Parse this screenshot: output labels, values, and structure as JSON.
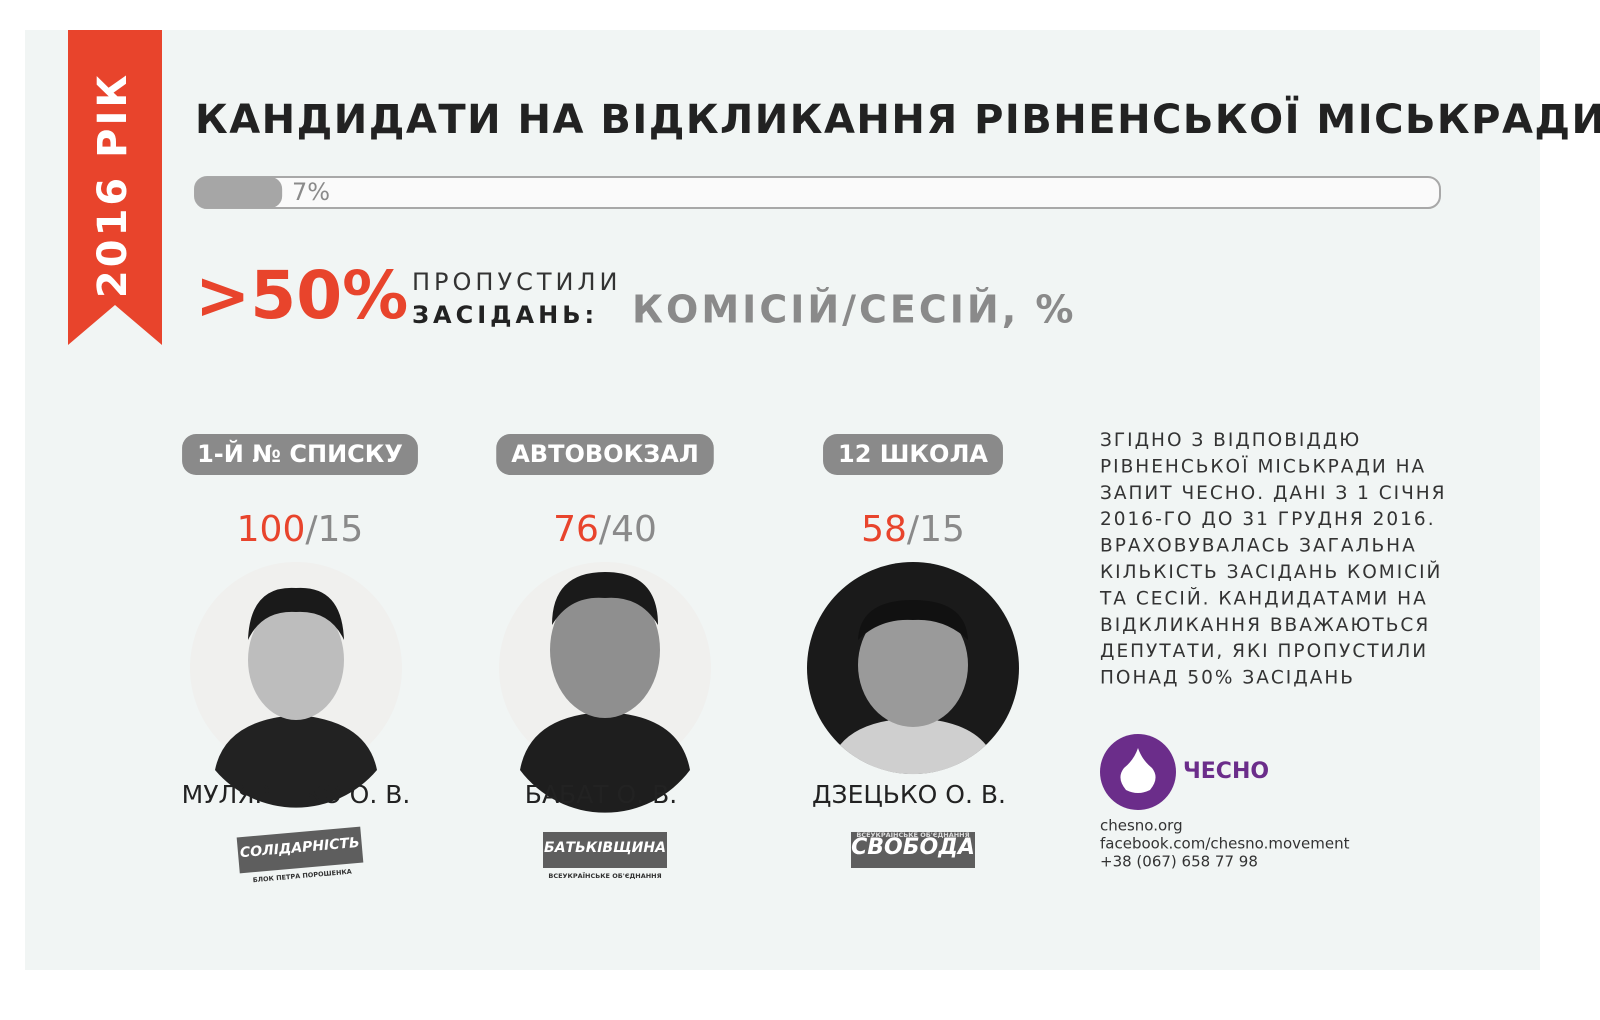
{
  "ribbon": "2016 РІК",
  "title": "КАНДИДАТИ НА ВІДКЛИКАННЯ РІВНЕНСЬКОЇ МІСЬКРАДИ",
  "progress": {
    "value": 7,
    "label": "7%"
  },
  "headline": {
    "big": ">50%",
    "line1": "ПРОПУСТИЛИ",
    "line2": "ЗАСІДАНЬ:",
    "kind": "КОМІСІЙ/СЕСІЙ, %"
  },
  "separator": "/",
  "candidates": [
    {
      "tag": "1-Й № СПИСКУ",
      "committees": 100,
      "sessions": 15,
      "name": "МУЛЯРЕНКО О. В.",
      "party": "СОЛІДАРНІСТЬ",
      "party_sub": "БЛОК ПЕТРА ПОРОШЕНКА"
    },
    {
      "tag": "АВТОВОКЗАЛ",
      "committees": 76,
      "sessions": 40,
      "name": "БАБАТ О. В.",
      "party": "БАТЬКІВЩИНА",
      "party_sub": "ВСЕУКРАЇНСЬКЕ ОБ'ЄДНАННЯ"
    },
    {
      "tag": "12 ШКОЛА",
      "committees": 58,
      "sessions": 15,
      "name": "ДЗЕЦЬКО О. В.",
      "party": "СВОБОДА",
      "party_sub": "ВСЕУКРАЇНСЬКЕ ОБ'ЄДНАННЯ"
    }
  ],
  "note": [
    "ЗГІДНО З ВІДПОВІДДЮ",
    "РІВНЕНСЬКОЇ МІСЬКРАДИ НА",
    "ЗАПИТ ЧЕСНО. ДАНІ З 1 СІЧНЯ",
    "2016-ГО ДО 31 ГРУДНЯ 2016.",
    "ВРАХОВУВАЛАСЬ ЗАГАЛЬНА",
    "КІЛЬКІСТЬ ЗАСІДАНЬ КОМІСІЙ",
    "ТА СЕСІЙ. КАНДИДАТАМИ НА",
    "ВІДКЛИКАННЯ ВВАЖАЮТЬСЯ",
    "ДЕПУТАТИ, ЯКІ ПРОПУСТИЛИ",
    "ПОНАД 50% ЗАСІДАНЬ"
  ],
  "logo": "ЧЕСНО",
  "contacts": [
    "chesno.org",
    "facebook.com/chesno.movement",
    "+38 (067) 658 77 98"
  ]
}
